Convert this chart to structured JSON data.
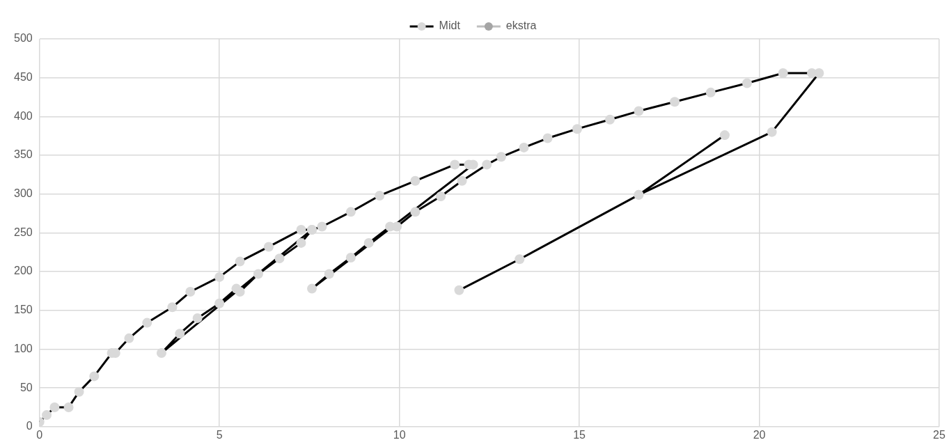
{
  "chart_data": {
    "type": "line",
    "marker": "circle",
    "grid": true,
    "legend": "top",
    "xlim": [
      0,
      25
    ],
    "xticks": [
      0,
      5,
      10,
      15,
      20,
      25
    ],
    "ylim": [
      0,
      500
    ],
    "yticks": [
      0,
      50,
      100,
      150,
      200,
      250,
      300,
      350,
      400,
      450,
      500
    ],
    "series": [
      {
        "name": "Midt",
        "color": "#000000",
        "x": [
          0,
          0.2,
          0.42,
          0.81,
          1.1,
          1.52,
          2.01,
          2.11,
          2.49,
          2.99,
          3.69,
          4.19,
          5.0,
          5.57,
          6.37,
          7.27,
          7.57,
          3.39,
          3.9,
          4.39,
          5.0,
          5.47,
          5.57,
          6.08,
          6.67,
          7.27,
          7.57,
          7.85,
          8.65,
          9.45,
          10.44,
          11.54,
          11.93,
          12.05,
          7.57,
          8.05,
          8.65,
          9.15,
          9.74,
          9.93,
          10.44,
          11.15,
          11.74,
          12.43,
          12.83,
          13.46,
          14.12,
          14.94,
          15.85,
          16.65,
          17.65,
          18.65,
          19.66,
          20.66,
          21.46,
          21.66,
          20.35,
          16.65,
          19.04,
          16.65,
          13.34,
          11.66
        ],
        "values": [
          6,
          15,
          25,
          25,
          45,
          65,
          95,
          95,
          114,
          134,
          154,
          174,
          193,
          213,
          232,
          254,
          254,
          95,
          120,
          140,
          159,
          178,
          174,
          197,
          217,
          237,
          254,
          258,
          277,
          298,
          317,
          338,
          338,
          338,
          178,
          197,
          218,
          237,
          258,
          258,
          277,
          297,
          317,
          338,
          348,
          360,
          372,
          384,
          396,
          407,
          419,
          431,
          443,
          456,
          456,
          456,
          380,
          299,
          376,
          299,
          216,
          176
        ]
      },
      {
        "name": "ekstra",
        "color": "#bfbfbf"
      }
    ]
  }
}
